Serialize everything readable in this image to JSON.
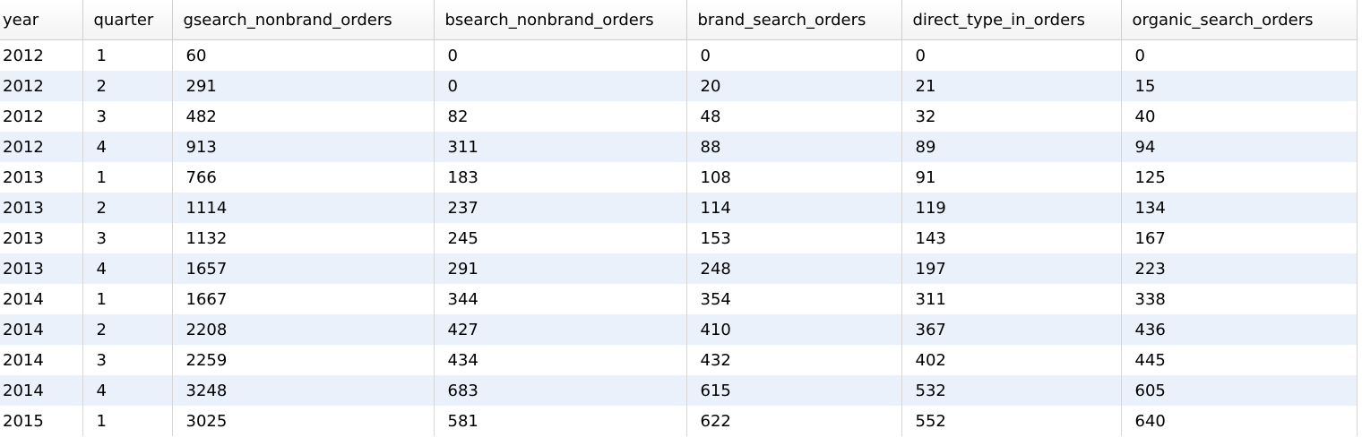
{
  "columns": [
    "year",
    "quarter",
    "gsearch_nonbrand_orders",
    "bsearch_nonbrand_orders",
    "brand_search_orders",
    "direct_type_in_orders",
    "organic_search_orders"
  ],
  "rows": [
    [
      "2012",
      "1",
      "60",
      "0",
      "0",
      "0",
      "0"
    ],
    [
      "2012",
      "2",
      "291",
      "0",
      "20",
      "21",
      "15"
    ],
    [
      "2012",
      "3",
      "482",
      "82",
      "48",
      "32",
      "40"
    ],
    [
      "2012",
      "4",
      "913",
      "311",
      "88",
      "89",
      "94"
    ],
    [
      "2013",
      "1",
      "766",
      "183",
      "108",
      "91",
      "125"
    ],
    [
      "2013",
      "2",
      "1114",
      "237",
      "114",
      "119",
      "134"
    ],
    [
      "2013",
      "3",
      "1132",
      "245",
      "153",
      "143",
      "167"
    ],
    [
      "2013",
      "4",
      "1657",
      "291",
      "248",
      "197",
      "223"
    ],
    [
      "2014",
      "1",
      "1667",
      "344",
      "354",
      "311",
      "338"
    ],
    [
      "2014",
      "2",
      "2208",
      "427",
      "410",
      "367",
      "436"
    ],
    [
      "2014",
      "3",
      "2259",
      "434",
      "432",
      "402",
      "445"
    ],
    [
      "2014",
      "4",
      "3248",
      "683",
      "615",
      "532",
      "605"
    ],
    [
      "2015",
      "1",
      "3025",
      "581",
      "622",
      "552",
      "640"
    ]
  ]
}
